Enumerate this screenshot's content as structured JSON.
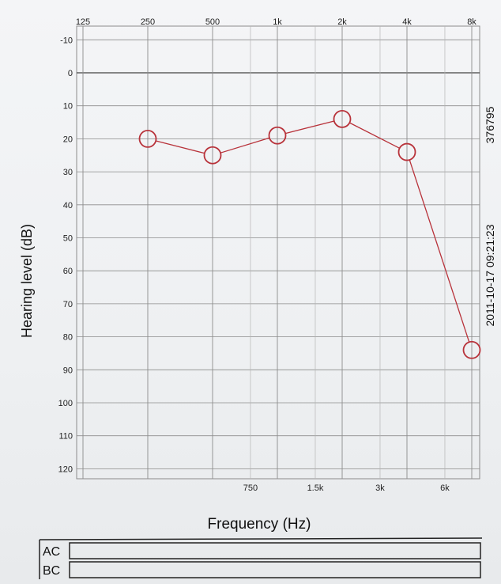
{
  "chart_data": {
    "type": "line",
    "xlabel": "Frequency (Hz)",
    "ylabel": "Hearing level (dB)",
    "x_scale": "log2",
    "ylim": [
      -15,
      125
    ],
    "y_inverted": true,
    "grid": true,
    "top_x_ticks": [
      "125",
      "250",
      "500",
      "1k",
      "2k",
      "4k",
      "8k"
    ],
    "top_x_values": [
      125,
      250,
      500,
      1000,
      2000,
      4000,
      8000
    ],
    "bottom_x_ticks": [
      "750",
      "1.5k",
      "3k",
      "6k"
    ],
    "bottom_x_values": [
      750,
      1500,
      3000,
      6000
    ],
    "y_ticks": [
      -10,
      0,
      10,
      20,
      30,
      40,
      50,
      60,
      70,
      80,
      90,
      100,
      110,
      120
    ],
    "series": [
      {
        "marker": "circle",
        "color": "#b8323a",
        "x": [
          250,
          500,
          1000,
          2000,
          4000,
          8000
        ],
        "y": [
          20,
          25,
          19,
          14,
          24,
          84
        ]
      }
    ],
    "side_text": [
      "376795",
      "2011-10-17  09:21:23"
    ]
  },
  "legend_rows": [
    "AC",
    "BC"
  ],
  "colors": {
    "grid": "#8c8c8c",
    "data": "#b8323a",
    "ink": "#222222"
  }
}
